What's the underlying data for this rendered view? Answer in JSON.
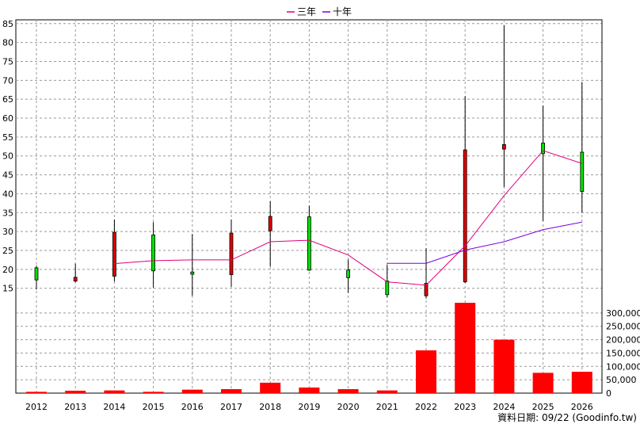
{
  "chart_data": {
    "type": "candlestick+line+bar",
    "legend": [
      {
        "name": "三年",
        "color": "#e0007a"
      },
      {
        "name": "十年",
        "color": "#7a00e0"
      }
    ],
    "legend_position": "top-center",
    "grid": true,
    "categories": [
      "2012",
      "2013",
      "2014",
      "2015",
      "2016",
      "2017",
      "2018",
      "2019",
      "2020",
      "2021",
      "2022",
      "2023",
      "2024",
      "2025",
      "2026"
    ],
    "price_axis": {
      "ylim": [
        12,
        86
      ],
      "ticks": [
        15,
        20,
        25,
        30,
        35,
        40,
        45,
        50,
        55,
        60,
        65,
        70,
        75,
        80,
        85
      ],
      "side": "left"
    },
    "volume_axis": {
      "ylim": [
        0,
        350000
      ],
      "ticks": [
        0,
        50000,
        100000,
        150000,
        200000,
        250000,
        300000
      ],
      "tick_labels": [
        "0",
        "50,000",
        "100,000",
        "150,000",
        "200,000",
        "250,000",
        "300,000"
      ],
      "side": "right"
    },
    "candles": [
      {
        "year": "2012",
        "open": 17.2,
        "close": 20.4,
        "high": 21.0,
        "low": 14.7,
        "color": "green"
      },
      {
        "year": "2013",
        "open": 17.9,
        "close": 16.9,
        "high": 21.5,
        "low": 16.6,
        "color": "red"
      },
      {
        "year": "2014",
        "open": 18.2,
        "close": 29.8,
        "high": 33.2,
        "low": 16.8,
        "color": "red"
      },
      {
        "year": "2015",
        "open": 29.1,
        "close": 19.6,
        "high": 32.5,
        "low": 15.2,
        "color": "green"
      },
      {
        "year": "2016",
        "open": 19.3,
        "close": 18.7,
        "high": 29.3,
        "low": 13.0,
        "color": "green"
      },
      {
        "year": "2017",
        "open": 18.6,
        "close": 29.6,
        "high": 33.2,
        "low": 15.4,
        "color": "red"
      },
      {
        "year": "2018",
        "open": 30.2,
        "close": 34.0,
        "high": 38.0,
        "low": 20.7,
        "color": "red"
      },
      {
        "year": "2019",
        "open": 33.9,
        "close": 19.8,
        "high": 36.8,
        "low": 19.6,
        "color": "green"
      },
      {
        "year": "2020",
        "open": 19.8,
        "close": 17.8,
        "high": 22.6,
        "low": 13.8,
        "color": "green"
      },
      {
        "year": "2021",
        "open": 16.9,
        "close": 13.3,
        "high": 21.2,
        "low": 12.6,
        "color": "green"
      },
      {
        "year": "2022",
        "open": 16.3,
        "close": 13.0,
        "high": 25.6,
        "low": 12.3,
        "color": "red"
      },
      {
        "year": "2023",
        "open": 16.7,
        "close": 51.6,
        "high": 65.8,
        "low": 16.4,
        "color": "red"
      },
      {
        "year": "2024",
        "open": 53.0,
        "close": 51.8,
        "high": 84.5,
        "low": 41.8,
        "color": "red"
      },
      {
        "year": "2025",
        "open": 53.4,
        "close": 50.6,
        "high": 63.3,
        "low": 32.8,
        "color": "green"
      },
      {
        "year": "2026",
        "open": 51.0,
        "close": 40.6,
        "high": 69.5,
        "low": 35.0,
        "color": "green"
      }
    ],
    "series": [
      {
        "name": "三年",
        "color": "#e0007a",
        "points": [
          [
            "2014",
            21.5
          ],
          [
            "2015",
            22.3
          ],
          [
            "2016",
            22.5
          ],
          [
            "2017",
            22.5
          ],
          [
            "2018",
            27.3
          ],
          [
            "2019",
            27.7
          ],
          [
            "2020",
            23.8
          ],
          [
            "2021",
            16.7
          ],
          [
            "2022",
            15.8
          ],
          [
            "2023",
            26.2
          ],
          [
            "2024",
            39.5
          ],
          [
            "2025",
            51.4
          ],
          [
            "2026",
            48.0
          ]
        ]
      },
      {
        "name": "十年",
        "color": "#7a00e0",
        "points": [
          [
            "2021",
            21.6
          ],
          [
            "2022",
            21.6
          ],
          [
            "2023",
            25.1
          ],
          [
            "2024",
            27.3
          ],
          [
            "2025",
            30.5
          ],
          [
            "2026",
            32.5
          ]
        ]
      }
    ],
    "volume": [
      5000,
      9000,
      10000,
      5000,
      13000,
      15000,
      39000,
      21000,
      15000,
      10000,
      160000,
      338000,
      200000,
      76000,
      80000
    ]
  },
  "source_note": "資料日期: 09/22 (Goodinfo.tw)"
}
